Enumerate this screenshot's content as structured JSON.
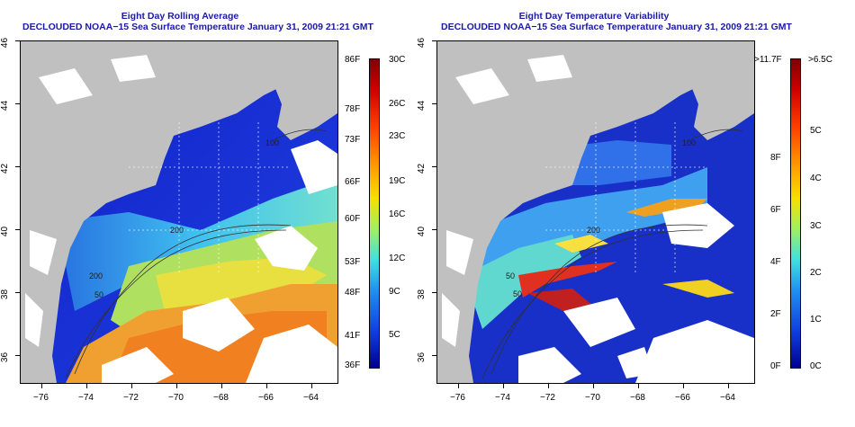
{
  "left_panel": {
    "title_line1": "Eight Day Rolling Average",
    "title_line2": "DECLOUDED NOAA−15 Sea Surface Temperature January 31, 2009 21:21 GMT",
    "colorbar_f": [
      "86F",
      "78F",
      "73F",
      "66F",
      "60F",
      "53F",
      "48F",
      "41F",
      "36F"
    ],
    "colorbar_c": [
      "30C",
      "26C",
      "23C",
      "19C",
      "16C",
      "12C",
      "9C",
      "5C"
    ],
    "contour_labels": [
      "100",
      "200",
      "200",
      "50"
    ]
  },
  "right_panel": {
    "title_line1": "Eight Day Temperature Variability",
    "title_line2": "DECLOUDED NOAA−15 Sea Surface Temperature January 31, 2009 21:21 GMT",
    "colorbar_f": [
      ">11.7F",
      "8F",
      "6F",
      "4F",
      "2F",
      "0F"
    ],
    "colorbar_c": [
      ">6.5C",
      "5C",
      "4C",
      "3C",
      "2C",
      "1C",
      "0C"
    ],
    "contour_labels": [
      "100",
      "200",
      "50",
      "50"
    ]
  },
  "x_axis_ticks": [
    "−76",
    "−74",
    "−72",
    "−70",
    "−68",
    "−66",
    "−64"
  ],
  "y_axis_ticks": [
    "46",
    "44",
    "42",
    "40",
    "38",
    "36"
  ],
  "colors": {
    "title": "#1a1aa6",
    "land": "#c0c0c0",
    "cloud": "#ffffff"
  }
}
